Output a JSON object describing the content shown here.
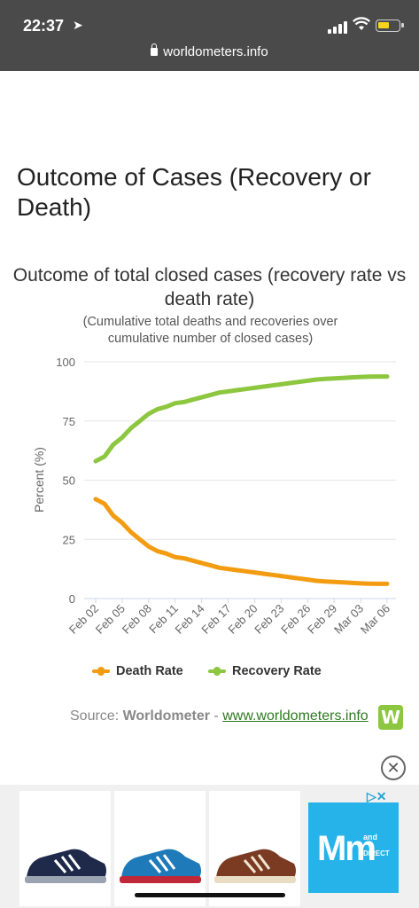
{
  "status": {
    "time": "22:37",
    "url": "worldometers.info"
  },
  "page": {
    "heading": "Outcome of Cases (Recovery or Death)"
  },
  "chart_data": {
    "type": "line",
    "title": "Outcome of total closed cases (recovery rate vs death rate)",
    "subtitle": "(Cumulative total deaths and recoveries over cumulative number of closed cases)",
    "ylabel": "Percent (%)",
    "xlabel": "",
    "ylim": [
      0,
      100
    ],
    "yticks": [
      0,
      25,
      50,
      75,
      100
    ],
    "grid": true,
    "legend_position": "bottom",
    "x": [
      "Feb 02",
      "Feb 03",
      "Feb 04",
      "Feb 05",
      "Feb 06",
      "Feb 07",
      "Feb 08",
      "Feb 09",
      "Feb 10",
      "Feb 11",
      "Feb 12",
      "Feb 13",
      "Feb 14",
      "Feb 15",
      "Feb 16",
      "Feb 17",
      "Feb 18",
      "Feb 19",
      "Feb 20",
      "Feb 21",
      "Feb 22",
      "Feb 23",
      "Feb 24",
      "Feb 25",
      "Feb 26",
      "Feb 27",
      "Feb 28",
      "Feb 29",
      "Mar 01",
      "Mar 02",
      "Mar 03",
      "Mar 04",
      "Mar 05",
      "Mar 06"
    ],
    "tick_labels": [
      "Feb 02",
      "Feb 05",
      "Feb 08",
      "Feb 11",
      "Feb 14",
      "Feb 17",
      "Feb 20",
      "Feb 23",
      "Feb 26",
      "Feb 29",
      "Mar 03",
      "Mar 06"
    ],
    "series": [
      {
        "name": "Death Rate",
        "color": "#f39c12",
        "values": [
          42,
          40,
          35,
          32,
          28,
          25,
          22,
          20,
          19,
          17.5,
          17,
          16,
          15,
          14,
          13,
          12.5,
          12,
          11.5,
          11,
          10.5,
          10,
          9.5,
          9,
          8.5,
          8,
          7.5,
          7.2,
          7,
          6.8,
          6.6,
          6.4,
          6.3,
          6.2,
          6.2
        ]
      },
      {
        "name": "Recovery Rate",
        "color": "#8dc63f",
        "values": [
          58,
          60,
          65,
          68,
          72,
          75,
          78,
          80,
          81,
          82.5,
          83,
          84,
          85,
          86,
          87,
          87.5,
          88,
          88.5,
          89,
          89.5,
          90,
          90.5,
          91,
          91.5,
          92,
          92.5,
          92.8,
          93,
          93.2,
          93.4,
          93.6,
          93.7,
          93.8,
          93.8
        ]
      }
    ]
  },
  "source": {
    "prefix": "Source: ",
    "name": "Worldometer",
    "separator": " - ",
    "link": "www.worldometers.info",
    "logo_letter": "W"
  },
  "ad": {
    "close_icon": "close-circle-icon",
    "choices_icon": "adchoices-icon",
    "brand_big": "Mm",
    "brand_and": "and",
    "brand_direct": "DIRECT"
  }
}
